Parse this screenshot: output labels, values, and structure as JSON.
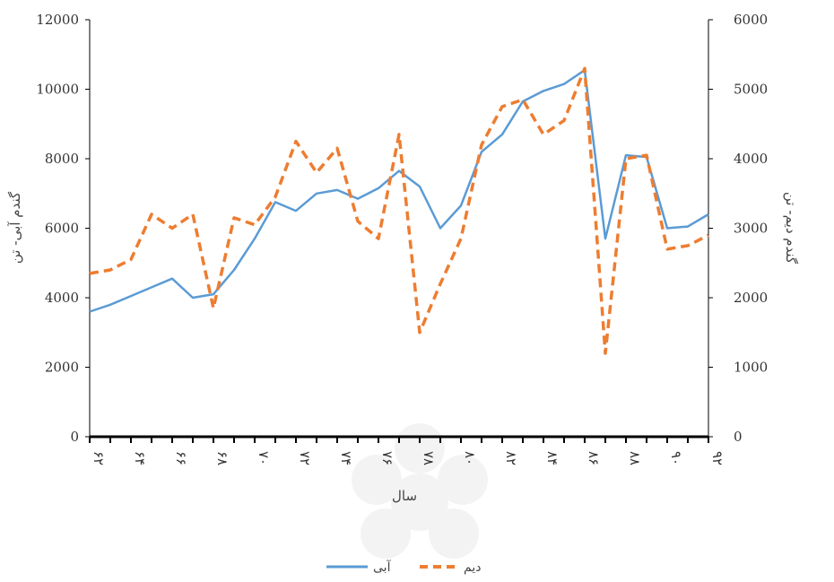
{
  "chart_data": {
    "type": "line",
    "xlabel": "سال",
    "ylabel_left": "گندم آبی- تن",
    "ylabel_right": "گندم دیم- تن",
    "ylim_left": [
      0,
      12000
    ],
    "ylim_right": [
      0,
      6000
    ],
    "yticks_left": [
      "0",
      "2000",
      "4000",
      "6000",
      "8000",
      "10000",
      "12000"
    ],
    "yticks_right": [
      "0",
      "1000",
      "2000",
      "3000",
      "4000",
      "5000",
      "6000"
    ],
    "xticks": [
      "۶۲",
      "۶۴",
      "۶۶",
      "۶۸",
      "۷۰",
      "۷۲",
      "۷۴",
      "۷۶",
      "۷۸",
      "۸۰",
      "۸۲",
      "۸۴",
      "۸۶",
      "۸۸",
      "۹۰",
      "۹۲"
    ],
    "x": [
      62,
      63,
      64,
      65,
      66,
      67,
      68,
      69,
      70,
      71,
      72,
      73,
      74,
      75,
      76,
      77,
      78,
      79,
      80,
      81,
      82,
      83,
      84,
      85,
      86,
      87,
      88,
      89,
      90,
      91,
      92
    ],
    "series": [
      {
        "name": "آبی",
        "axis": "left",
        "color": "#5b9bd5",
        "dash": "solid",
        "values": [
          3600,
          3800,
          4050,
          4300,
          4550,
          4000,
          4100,
          4800,
          5700,
          6750,
          6500,
          7000,
          7100,
          6850,
          7150,
          7650,
          7200,
          6000,
          6650,
          8200,
          8700,
          9650,
          9950,
          10150,
          10550,
          5700,
          8100,
          8050,
          6000,
          6050,
          6400
        ]
      },
      {
        "name": "دیم",
        "axis": "right",
        "color": "#ed7d31",
        "dash": "dashed",
        "values": [
          2350,
          2400,
          2550,
          3200,
          3000,
          3200,
          1850,
          3150,
          3050,
          3450,
          4250,
          3800,
          4150,
          3100,
          2850,
          4350,
          1500,
          2200,
          2850,
          4200,
          4750,
          4850,
          4350,
          4550,
          5300,
          1200,
          4000,
          4050,
          2700,
          2750,
          2900
        ]
      }
    ],
    "legend_position": "bottom-center",
    "grid": false
  }
}
